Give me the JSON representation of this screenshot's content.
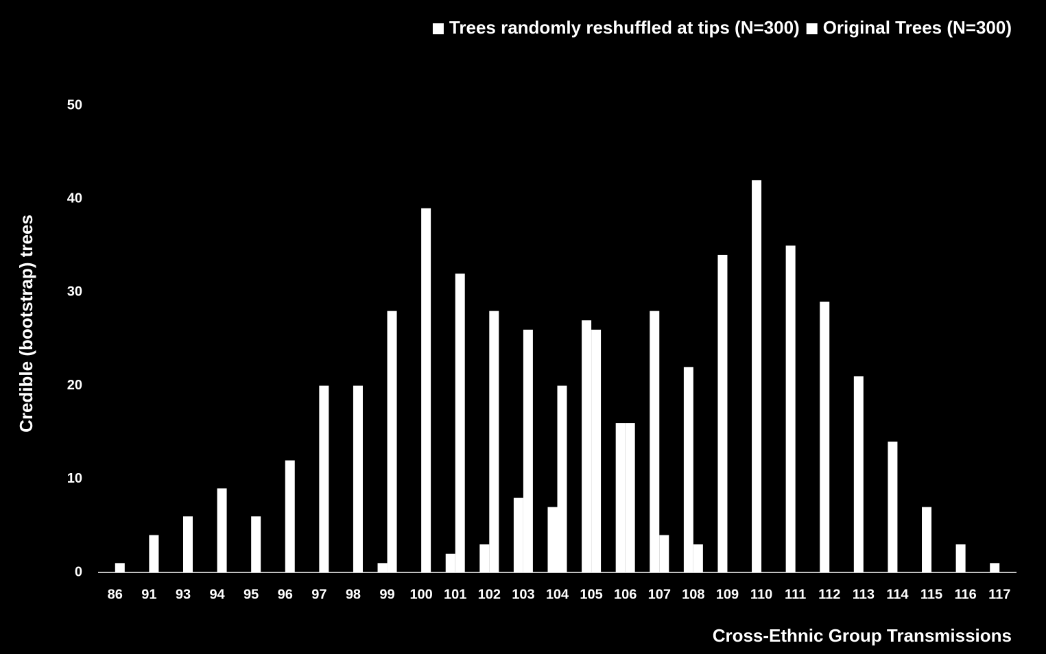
{
  "chart_data": {
    "type": "bar",
    "x_label": "Cross-Ethnic Group Transmissions",
    "y_label": "Credible (bootstrap) trees",
    "categories": [
      "86",
      "91",
      "93",
      "94",
      "95",
      "96",
      "97",
      "98",
      "99",
      "100",
      "101",
      "102",
      "103",
      "104",
      "105",
      "106",
      "107",
      "108",
      "109",
      "110",
      "111",
      "112",
      "113",
      "114",
      "115",
      "116",
      "117"
    ],
    "series": [
      {
        "name": "Trees randomly reshuffled at tips (N=300)",
        "color": "#ffffff",
        "values": [
          null,
          null,
          null,
          null,
          null,
          null,
          null,
          null,
          1,
          null,
          2,
          3,
          8,
          7,
          27,
          16,
          28,
          22,
          34,
          42,
          35,
          29,
          21,
          14,
          7,
          3,
          1
        ]
      },
      {
        "name": "Original Trees (N=300)",
        "color": "#ffffff",
        "values": [
          1,
          4,
          6,
          9,
          6,
          12,
          20,
          20,
          28,
          39,
          32,
          28,
          26,
          20,
          26,
          16,
          4,
          3,
          null,
          null,
          null,
          null,
          null,
          null,
          null,
          null,
          null
        ]
      }
    ],
    "ylim": [
      0,
      50
    ],
    "yticks": [
      0,
      10,
      20,
      30,
      40,
      50
    ],
    "grid": false
  }
}
